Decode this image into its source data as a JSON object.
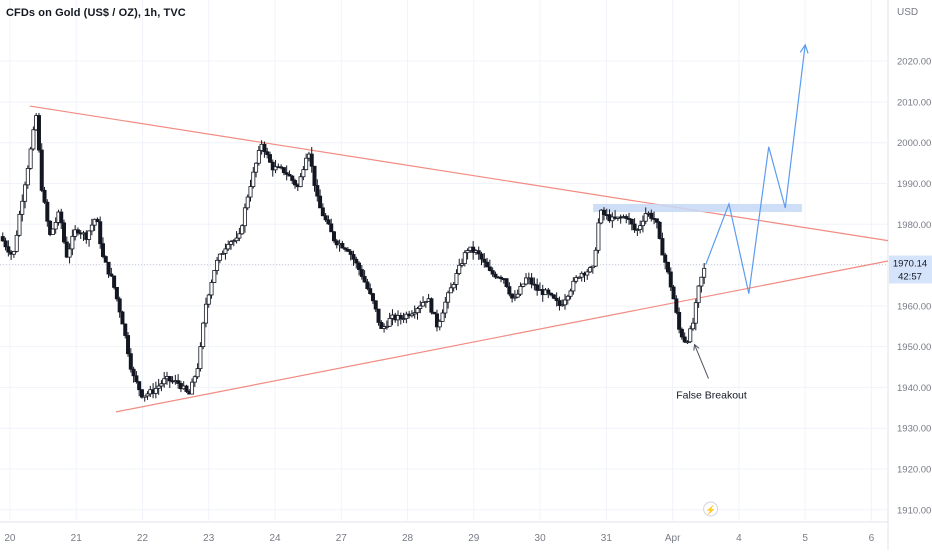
{
  "symbol_title": "CFDs on Gold (US$ / OZ), 1h, TVC",
  "currency": "USD",
  "colors": {
    "background": "#ffffff",
    "grid": "#f0f3fa",
    "candle_up": "#ffffff",
    "candle_down": "#131722",
    "wick": "#131722",
    "trendline": "#f28b82",
    "projection": "#5b9cf0",
    "zone": "#c6d8f5",
    "price_badge": "#d6e4fb",
    "axis_text": "#787b86"
  },
  "price_label": {
    "value": "1970.14",
    "countdown": "42:57"
  },
  "annotation": {
    "text": "False Breakout"
  },
  "event_icon": {
    "name": "lightning-icon",
    "glyph": "⚡"
  },
  "chart_data": {
    "type": "candlestick",
    "title": "CFDs on Gold (US$ / OZ), 1h, TVC",
    "ylim": [
      1907,
      2035
    ],
    "yticks": [
      1910,
      1920,
      1930,
      1940,
      1950,
      1960,
      1970,
      1980,
      1990,
      2000,
      2010,
      2020
    ],
    "ytick_labels": [
      "1910.00",
      "1920.00",
      "1930.00",
      "1940.00",
      "1950.00",
      "1960.00",
      "1970.00",
      "1980.00",
      "1990.00",
      "2000.00",
      "2010.00",
      "2020.00"
    ],
    "xlim": [
      0,
      13.4
    ],
    "xticks": [
      {
        "label": "20",
        "x": 0.15
      },
      {
        "label": "21",
        "x": 1.15
      },
      {
        "label": "22",
        "x": 2.15
      },
      {
        "label": "23",
        "x": 3.15
      },
      {
        "label": "24",
        "x": 4.15
      },
      {
        "label": "27",
        "x": 5.15
      },
      {
        "label": "28",
        "x": 6.15
      },
      {
        "label": "29",
        "x": 7.15
      },
      {
        "label": "30",
        "x": 8.15
      },
      {
        "label": "31",
        "x": 9.15
      },
      {
        "label": "Apr",
        "x": 10.15
      },
      {
        "label": "4",
        "x": 11.15
      },
      {
        "label": "5",
        "x": 12.15
      },
      {
        "label": "6",
        "x": 13.15
      }
    ],
    "close_path": [
      [
        0,
        1977
      ],
      [
        0.2,
        1972
      ],
      [
        0.3,
        1983
      ],
      [
        0.45,
        1997
      ],
      [
        0.55,
        2007
      ],
      [
        0.62,
        1990
      ],
      [
        0.75,
        1977
      ],
      [
        0.9,
        1983
      ],
      [
        1.0,
        1972
      ],
      [
        1.15,
        1979
      ],
      [
        1.3,
        1977
      ],
      [
        1.45,
        1982
      ],
      [
        1.55,
        1972
      ],
      [
        1.7,
        1966
      ],
      [
        1.85,
        1956
      ],
      [
        2.0,
        1943
      ],
      [
        2.15,
        1938
      ],
      [
        2.3,
        1939
      ],
      [
        2.5,
        1942
      ],
      [
        2.7,
        1941
      ],
      [
        2.85,
        1938
      ],
      [
        3.0,
        1946
      ],
      [
        3.1,
        1960
      ],
      [
        3.25,
        1970
      ],
      [
        3.45,
        1976
      ],
      [
        3.6,
        1976
      ],
      [
        3.75,
        1988
      ],
      [
        3.95,
        2000
      ],
      [
        4.1,
        1994
      ],
      [
        4.3,
        1993
      ],
      [
        4.5,
        1989
      ],
      [
        4.65,
        1999
      ],
      [
        4.8,
        1985
      ],
      [
        5.05,
        1976
      ],
      [
        5.25,
        1974
      ],
      [
        5.45,
        1968
      ],
      [
        5.65,
        1960
      ],
      [
        5.75,
        1954
      ],
      [
        5.9,
        1957
      ],
      [
        6.05,
        1957
      ],
      [
        6.25,
        1959
      ],
      [
        6.45,
        1962
      ],
      [
        6.6,
        1955
      ],
      [
        6.7,
        1960
      ],
      [
        6.85,
        1966
      ],
      [
        7.05,
        1974
      ],
      [
        7.2,
        1973
      ],
      [
        7.4,
        1968
      ],
      [
        7.6,
        1967
      ],
      [
        7.75,
        1961
      ],
      [
        7.95,
        1967
      ],
      [
        8.1,
        1964
      ],
      [
        8.25,
        1963
      ],
      [
        8.45,
        1960
      ],
      [
        8.6,
        1964
      ],
      [
        8.75,
        1968
      ],
      [
        8.95,
        1969
      ],
      [
        9.05,
        1983
      ],
      [
        9.25,
        1981
      ],
      [
        9.45,
        1982
      ],
      [
        9.6,
        1978
      ],
      [
        9.75,
        1983
      ],
      [
        9.9,
        1981
      ],
      [
        9.95,
        1976
      ],
      [
        10.05,
        1970
      ],
      [
        10.15,
        1963
      ],
      [
        10.25,
        1954
      ],
      [
        10.35,
        1951
      ],
      [
        10.45,
        1955
      ],
      [
        10.55,
        1965
      ],
      [
        10.65,
        1970.14
      ]
    ],
    "projection": [
      [
        10.65,
        1970.14
      ],
      [
        11.0,
        1985
      ],
      [
        11.3,
        1963
      ],
      [
        11.6,
        1999
      ],
      [
        11.85,
        1984
      ],
      [
        12.15,
        2024
      ]
    ],
    "resistance_line": {
      "from": [
        0.45,
        2009
      ],
      "to": [
        13.4,
        1976
      ]
    },
    "support_line": {
      "from": [
        1.75,
        1934
      ],
      "to": [
        13.4,
        1971
      ]
    },
    "zone": {
      "x_from": 8.95,
      "x_to": 12.1,
      "y_low": 1983,
      "y_high": 1985
    },
    "annotation_point": [
      10.45,
      1951
    ]
  }
}
